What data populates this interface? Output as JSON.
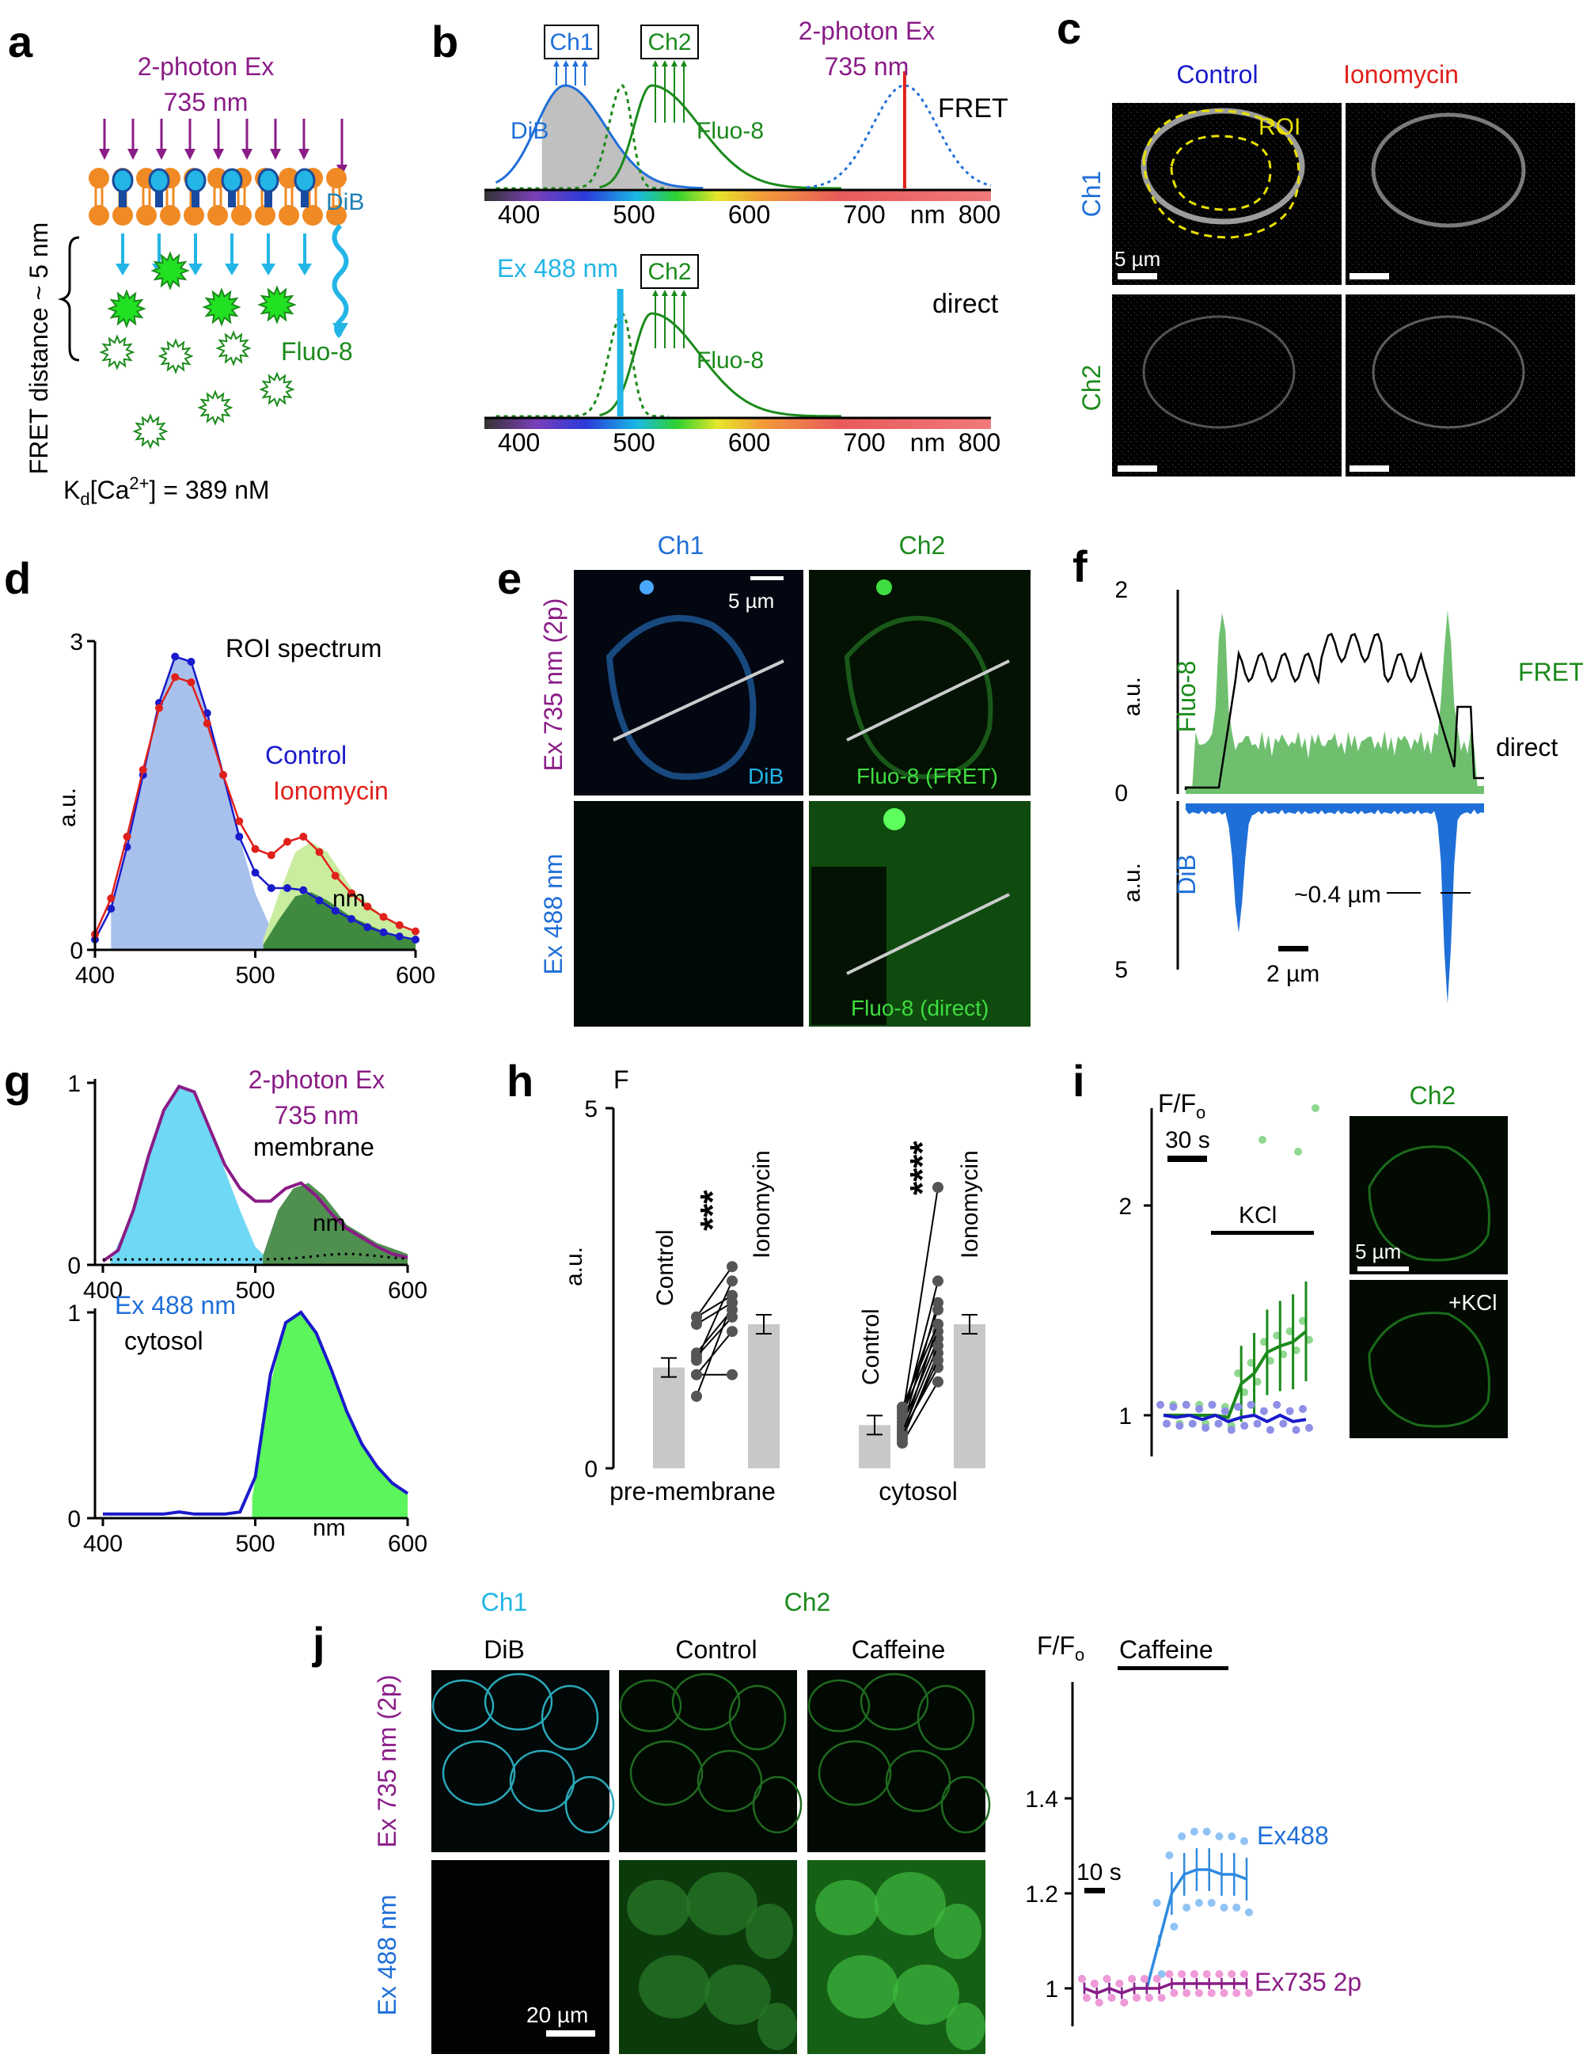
{
  "colors": {
    "purple": "#8a1c87",
    "blue": "#1f6fd8",
    "darkblue": "#1a1acb",
    "green": "#1b8a1b",
    "lightgreen": "#7ccf4f",
    "cyan": "#23b5e6",
    "red": "#e0201b",
    "orange": "#f08a24",
    "gray": "#c8c8c8"
  },
  "panel_a": {
    "letter": "a",
    "ex_line1": "2-photon Ex",
    "ex_line2": "735 nm",
    "yaxis": "FRET distance ~ 5 nm",
    "dib": "DiB",
    "fluo": "Fluo-8",
    "kd_K": "K",
    "kd_sub": "d",
    "kd_mid": "[Ca",
    "kd_sup": "2+",
    "kd_end": "] = 389 nM"
  },
  "panel_b": {
    "letter": "b",
    "ch1": "Ch1",
    "ch2": "Ch2",
    "ch2b": "Ch2",
    "twop1": "2-photon Ex",
    "twop2": "735 nm",
    "fret": "FRET",
    "direct": "direct",
    "dib": "DiB",
    "fluo": "Fluo-8",
    "fluob": "Fluo-8",
    "ex488": "Ex 488 nm",
    "unit": "nm",
    "ticks": [
      "400",
      "500",
      "600",
      "700",
      "800"
    ]
  },
  "panel_c": {
    "letter": "c",
    "control": "Control",
    "ionomycin": "Ionomycin",
    "roi": "ROI",
    "ch1": "Ch1",
    "ch2": "Ch2",
    "scale": "5 µm"
  },
  "panel_d": {
    "letter": "d",
    "title": "ROI spectrum",
    "control": "Control",
    "ionomycin": "Ionomycin",
    "ylabel": "a.u.",
    "unit": "nm",
    "yticks": [
      "0",
      "3"
    ],
    "xticks": [
      "400",
      "500",
      "600"
    ]
  },
  "panel_e": {
    "letter": "e",
    "ch1": "Ch1",
    "ch2": "Ch2",
    "row1": "Ex 735 nm (2p)",
    "row2": "Ex 488 nm",
    "scale": "5 µm",
    "dib": "DiB",
    "fret": "Fluo-8 (FRET)",
    "direct": "Fluo-8 (direct)"
  },
  "panel_f": {
    "letter": "f",
    "fret": "FRET",
    "direct": "direct",
    "fluo": "Fluo-8",
    "dib": "DiB",
    "au1": "a.u.",
    "au2": "a.u.",
    "width": "~0.4 µm",
    "scale": "2 µm",
    "t2": "2",
    "t0": "0",
    "t5": "5"
  },
  "panel_g": {
    "letter": "g",
    "twop1": "2-photon Ex",
    "twop2": "735 nm",
    "membrane": "membrane",
    "ex488": "Ex 488 nm",
    "cytosol": "cytosol",
    "unit": "nm",
    "unit2": "nm",
    "yticks": [
      "0",
      "1"
    ],
    "xticks": [
      "400",
      "500",
      "600"
    ]
  },
  "panel_h": {
    "letter": "h",
    "f": "F",
    "ylabel": "a.u.",
    "control": "Control",
    "ionomycin": "Ionomycin",
    "control2": "Control",
    "ionomycin2": "Ionomycin",
    "stars1": "***",
    "stars2": "****",
    "group1": "pre-membrane",
    "group2": "cytosol",
    "yticks": [
      "0",
      "5"
    ]
  },
  "panel_i": {
    "letter": "i",
    "ylabel": "F/F",
    "ysub": "o",
    "time": "30 s",
    "kcl": "KCl",
    "ch2": "Ch2",
    "scale": "5 µm",
    "plus_kcl": "+KCl",
    "yticks": [
      "1",
      "2"
    ]
  },
  "panel_j": {
    "letter": "j",
    "ch1": "Ch1",
    "ch2": "Ch2",
    "dib": "DiB",
    "control": "Control",
    "caffeine": "Caffeine",
    "row1": "Ex 735 nm (2p)",
    "row2": "Ex 488 nm",
    "scale": "20 µm",
    "ylabel": "F/F",
    "ysub": "o",
    "caffeine_bar": "Caffeine",
    "time": "10 s",
    "ex488": "Ex488",
    "ex735": "Ex735 2p",
    "yticks": [
      "1",
      "1.2",
      "1.4"
    ]
  },
  "chart_data": [
    {
      "panel": "d",
      "type": "line",
      "title": "ROI spectrum",
      "ylabel": "a.u.",
      "xlabel": "nm",
      "xlim": [
        400,
        600
      ],
      "ylim": [
        0,
        3
      ],
      "x": [
        400,
        410,
        420,
        430,
        440,
        450,
        460,
        470,
        480,
        490,
        500,
        510,
        520,
        530,
        540,
        550,
        560,
        570,
        580,
        590,
        600
      ],
      "series": [
        {
          "name": "Control",
          "values": [
            0.1,
            0.4,
            1.0,
            1.7,
            2.4,
            2.85,
            2.8,
            2.3,
            1.7,
            1.1,
            0.75,
            0.6,
            0.6,
            0.58,
            0.48,
            0.38,
            0.3,
            0.22,
            0.17,
            0.13,
            0.1
          ]
        },
        {
          "name": "Ionomycin",
          "values": [
            0.15,
            0.5,
            1.1,
            1.75,
            2.35,
            2.65,
            2.6,
            2.2,
            1.7,
            1.25,
            0.98,
            0.92,
            1.05,
            1.1,
            0.95,
            0.72,
            0.55,
            0.42,
            0.32,
            0.24,
            0.18
          ]
        }
      ]
    },
    {
      "panel": "g",
      "type": "area",
      "ylim": [
        0,
        1
      ],
      "xlim": [
        400,
        600
      ],
      "x": [
        400,
        410,
        420,
        430,
        440,
        450,
        460,
        470,
        480,
        490,
        500,
        510,
        520,
        530,
        540,
        550,
        560,
        570,
        580,
        590,
        600
      ],
      "series": [
        {
          "name": "2-photon Ex 735 nm membrane",
          "values": [
            0.02,
            0.08,
            0.3,
            0.6,
            0.85,
            0.98,
            0.95,
            0.75,
            0.55,
            0.42,
            0.35,
            0.35,
            0.42,
            0.45,
            0.38,
            0.28,
            0.2,
            0.15,
            0.1,
            0.06,
            0.04
          ]
        },
        {
          "name": "Ex 488 nm cytosol",
          "values": [
            0.02,
            0.02,
            0.02,
            0.02,
            0.02,
            0.03,
            0.02,
            0.02,
            0.02,
            0.03,
            0.2,
            0.7,
            0.95,
            1.0,
            0.9,
            0.72,
            0.52,
            0.36,
            0.25,
            0.17,
            0.12
          ]
        }
      ]
    },
    {
      "panel": "h",
      "type": "bar",
      "ylabel": "a.u.",
      "ylim": [
        0,
        5
      ],
      "categories": [
        "pre-membrane Control",
        "pre-membrane Ionomycin",
        "cytosol Control",
        "cytosol Ionomycin"
      ],
      "values": [
        1.4,
        2.0,
        0.6,
        2.0
      ]
    },
    {
      "panel": "i",
      "type": "line",
      "ylabel": "F/Fo",
      "ylim": [
        0.8,
        2.3
      ],
      "series": [
        {
          "values": [
            1.0,
            1.0,
            1.0,
            1.0,
            1.0,
            0.99,
            1.15,
            1.2,
            1.3,
            1.33,
            1.35,
            1.4
          ]
        },
        {
          "values": [
            1.0,
            0.99,
            1.0,
            0.98,
            1.0,
            0.97,
            0.99,
            1.0,
            0.97,
            1.0,
            0.97,
            0.98
          ]
        }
      ]
    },
    {
      "panel": "j",
      "type": "line",
      "ylabel": "F/Fo",
      "ylim": [
        0.95,
        1.45
      ],
      "series": [
        {
          "name": "Ex488",
          "values": [
            1.0,
            0.99,
            1.0,
            0.99,
            1.0,
            1.0,
            1.1,
            1.2,
            1.24,
            1.25,
            1.25,
            1.24,
            1.24,
            1.23
          ]
        },
        {
          "name": "Ex735 2p",
          "values": [
            1.0,
            0.99,
            1.0,
            0.99,
            1.0,
            1.0,
            1.0,
            1.01,
            1.01,
            1.01,
            1.01,
            1.01,
            1.01,
            1.01
          ]
        }
      ]
    }
  ]
}
